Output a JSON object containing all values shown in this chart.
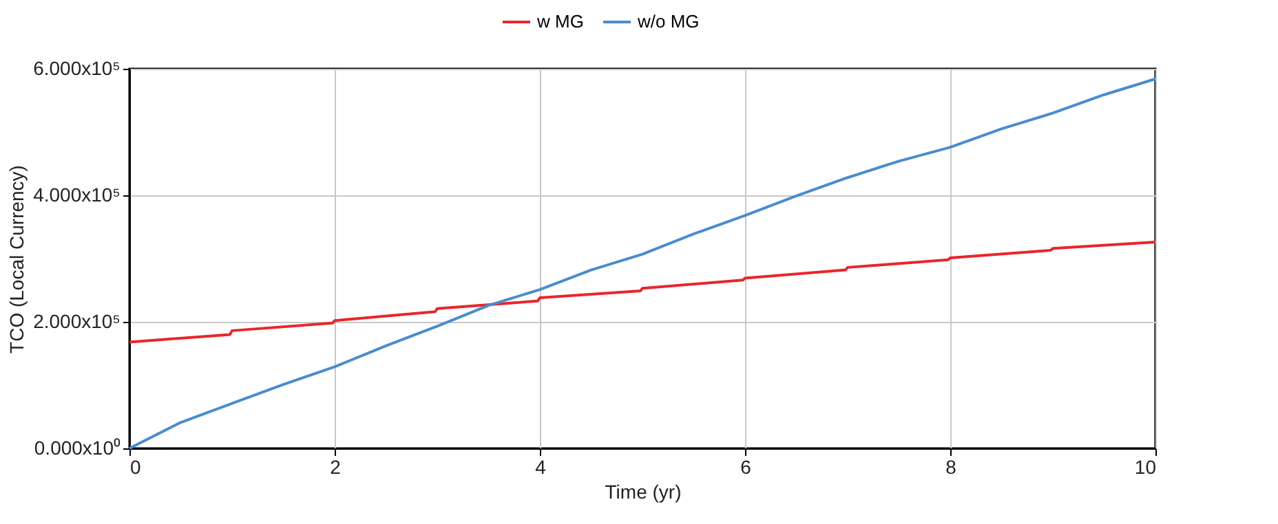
{
  "chart_data": {
    "type": "line",
    "xlabel": "Time (yr)",
    "ylabel": "TCO (Local Currency)",
    "xlim": [
      0,
      10
    ],
    "xticks": [
      0,
      2,
      4,
      6,
      8,
      10
    ],
    "ylim": [
      0,
      600000
    ],
    "yticks": [
      {
        "value": 0,
        "label": "0.000x10⁰"
      },
      {
        "value": 200000,
        "label": "2.000x10⁵"
      },
      {
        "value": 400000,
        "label": "4.000x10⁵"
      },
      {
        "value": 600000,
        "label": "6.000x10⁵"
      }
    ],
    "grid": true,
    "legend": "top",
    "line_style": "solid",
    "series": [
      {
        "name": "w MG",
        "color": "#e8262b",
        "x": [
          0,
          0.98,
          1,
          1.98,
          2,
          2.98,
          3,
          3.98,
          4,
          4.98,
          5,
          5.98,
          6,
          6.98,
          7,
          7.98,
          8,
          8.98,
          9,
          10
        ],
        "values": [
          168000,
          180000,
          186000,
          198000,
          202000,
          216000,
          221000,
          233000,
          238000,
          249000,
          253000,
          266000,
          269000,
          282000,
          286000,
          298000,
          301000,
          313000,
          316000,
          326000
        ]
      },
      {
        "name": "w/o MG",
        "color": "#4a8ccc",
        "x": [
          0,
          0.5,
          1,
          1.5,
          2,
          2.5,
          3,
          3.5,
          4,
          4.5,
          5,
          5.5,
          6,
          6.5,
          7,
          7.5,
          8,
          8.5,
          9,
          9.5,
          10
        ],
        "values": [
          0,
          41000,
          71000,
          101000,
          129000,
          162000,
          193000,
          226000,
          251000,
          282000,
          307000,
          339000,
          368000,
          399000,
          428000,
          454000,
          476000,
          505000,
          530000,
          559000,
          584000
        ]
      }
    ]
  }
}
